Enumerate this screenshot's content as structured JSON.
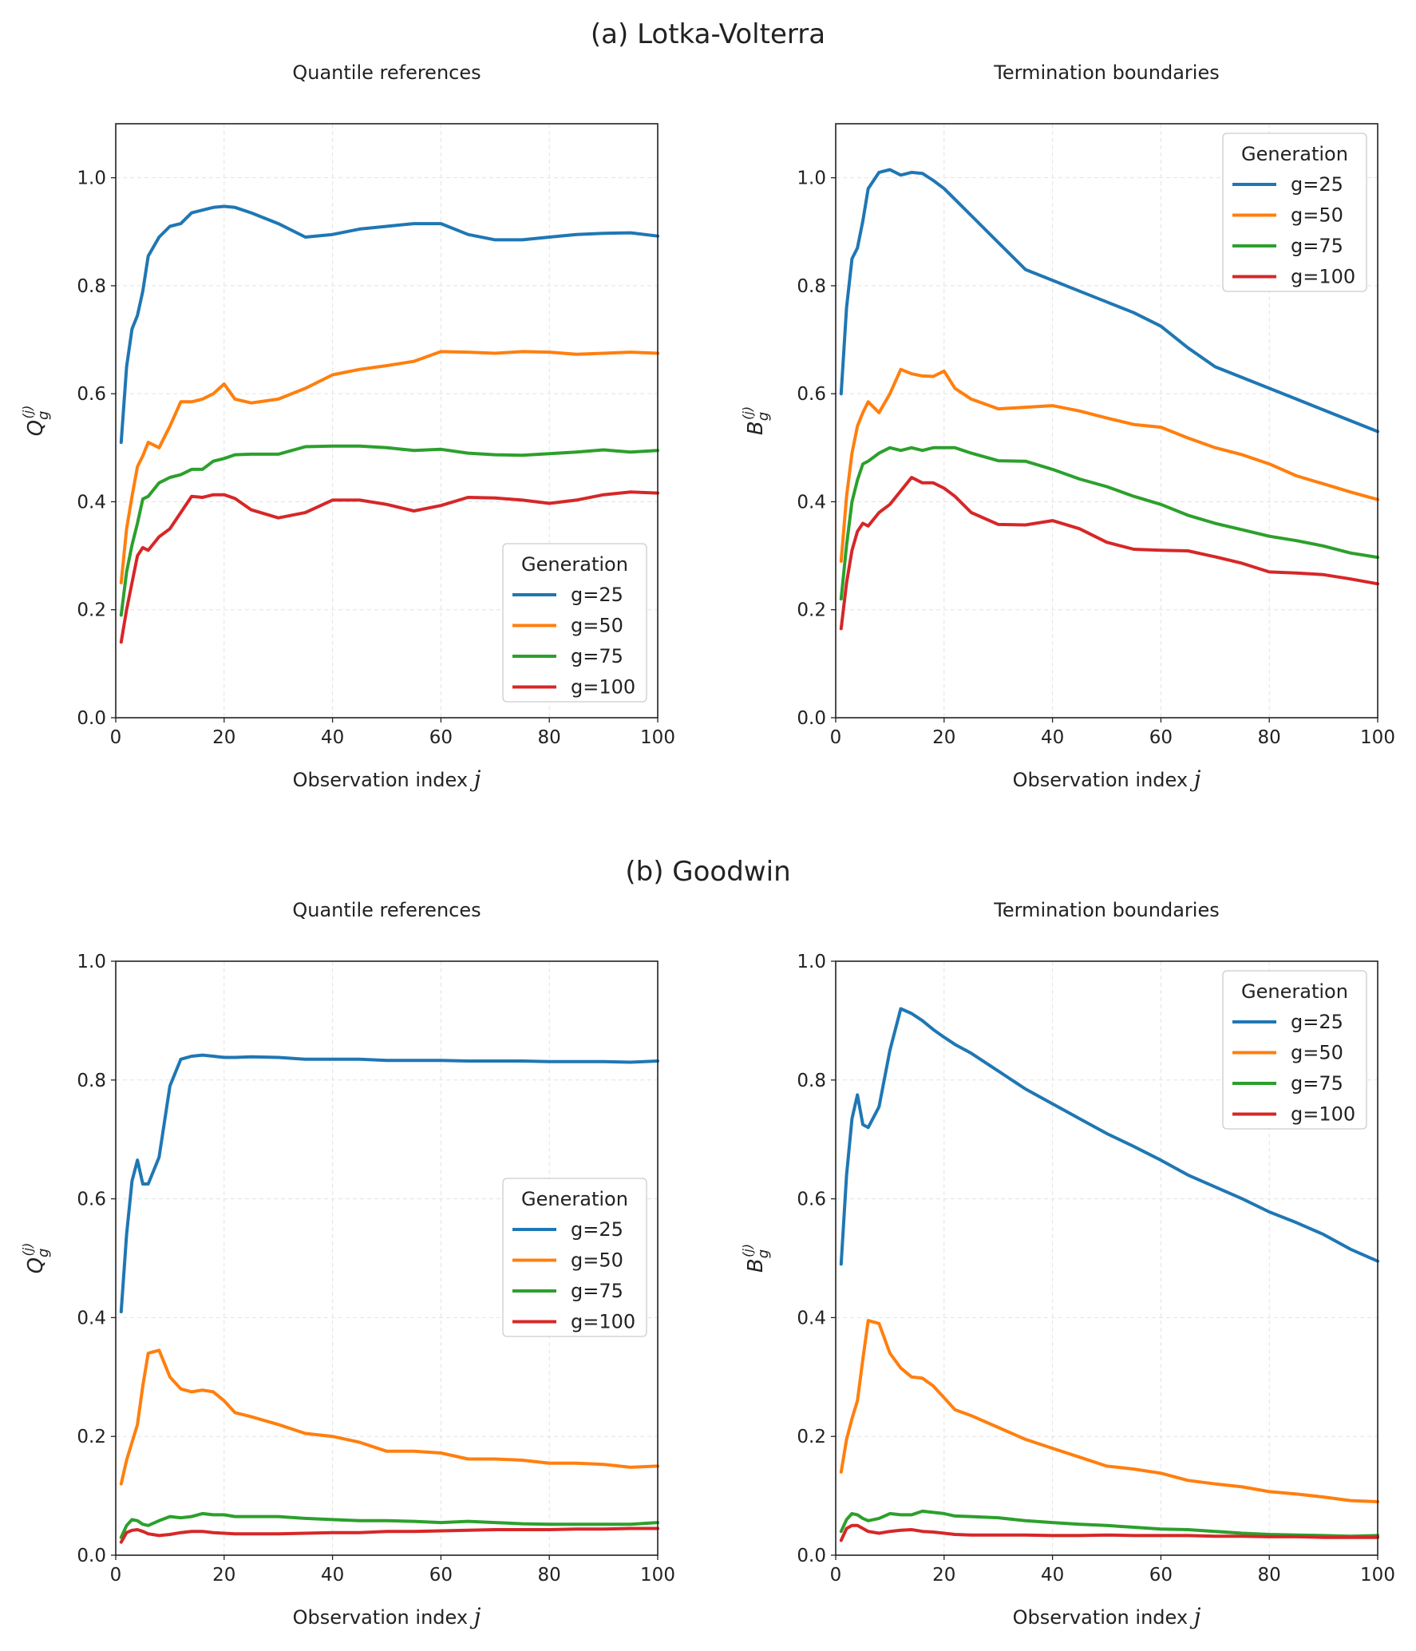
{
  "figure": {
    "row_titles": [
      "(a) Lotka-Volterra",
      "(b) Goodwin"
    ]
  },
  "colors": {
    "g=25": "#1f77b4",
    "g=50": "#ff7f0e",
    "g=75": "#2ca02c",
    "g=100": "#d62728"
  },
  "chart_data": [
    {
      "type": "line",
      "row": 0,
      "col": 0,
      "title": "Quantile references",
      "xlabel": "Observation index",
      "xlabel_var": "j",
      "ylabel": {
        "base": "Q",
        "sub": "g",
        "sup": "(j)"
      },
      "xlim": [
        0,
        100
      ],
      "ylim": [
        0,
        1.1
      ],
      "xticks": [
        0,
        20,
        40,
        60,
        80,
        100
      ],
      "xtick_labels": [
        "0",
        "20",
        "40",
        "60",
        "80",
        "100"
      ],
      "yticks": [
        0,
        0.2,
        0.4,
        0.6,
        0.8,
        1.0
      ],
      "ytick_labels": [
        "0.0",
        "0.2",
        "0.4",
        "0.6",
        "0.8",
        "1.0"
      ],
      "grid": true,
      "legend_title": "Generation",
      "legend_placement": "lower-right",
      "x": [
        1,
        2,
        3,
        4,
        5,
        6,
        8,
        10,
        12,
        14,
        16,
        18,
        20,
        22,
        25,
        30,
        35,
        40,
        45,
        50,
        55,
        60,
        65,
        70,
        75,
        80,
        85,
        90,
        95,
        100
      ],
      "series": [
        {
          "name": "g=25",
          "values": [
            0.51,
            0.65,
            0.72,
            0.745,
            0.79,
            0.855,
            0.89,
            0.91,
            0.915,
            0.935,
            0.94,
            0.945,
            0.947,
            0.945,
            0.935,
            0.915,
            0.89,
            0.895,
            0.905,
            0.91,
            0.915,
            0.915,
            0.895,
            0.885,
            0.885,
            0.89,
            0.895,
            0.897,
            0.898,
            0.892
          ]
        },
        {
          "name": "g=50",
          "values": [
            0.25,
            0.35,
            0.41,
            0.465,
            0.485,
            0.51,
            0.5,
            0.54,
            0.585,
            0.585,
            0.59,
            0.6,
            0.618,
            0.59,
            0.583,
            0.59,
            0.61,
            0.635,
            0.645,
            0.652,
            0.66,
            0.678,
            0.677,
            0.675,
            0.678,
            0.677,
            0.673,
            0.675,
            0.677,
            0.675
          ]
        },
        {
          "name": "g=75",
          "values": [
            0.19,
            0.27,
            0.32,
            0.36,
            0.405,
            0.41,
            0.435,
            0.445,
            0.45,
            0.46,
            0.46,
            0.475,
            0.48,
            0.487,
            0.488,
            0.488,
            0.502,
            0.503,
            0.503,
            0.5,
            0.495,
            0.497,
            0.49,
            0.487,
            0.486,
            0.489,
            0.492,
            0.496,
            0.492,
            0.495
          ]
        },
        {
          "name": "g=100",
          "values": [
            0.14,
            0.2,
            0.25,
            0.3,
            0.315,
            0.31,
            0.335,
            0.35,
            0.38,
            0.41,
            0.408,
            0.413,
            0.413,
            0.406,
            0.385,
            0.37,
            0.38,
            0.403,
            0.403,
            0.395,
            0.383,
            0.393,
            0.408,
            0.407,
            0.403,
            0.397,
            0.403,
            0.413,
            0.418,
            0.416
          ]
        }
      ]
    },
    {
      "type": "line",
      "row": 0,
      "col": 1,
      "title": "Termination boundaries",
      "xlabel": "Observation index",
      "xlabel_var": "j",
      "ylabel": {
        "base": "B",
        "sub": "g",
        "sup": "(j)"
      },
      "xlim": [
        0,
        100
      ],
      "ylim": [
        0,
        1.1
      ],
      "xticks": [
        0,
        20,
        40,
        60,
        80,
        100
      ],
      "xtick_labels": [
        "0",
        "20",
        "40",
        "60",
        "80",
        "100"
      ],
      "yticks": [
        0,
        0.2,
        0.4,
        0.6,
        0.8,
        1.0
      ],
      "ytick_labels": [
        "0.0",
        "0.2",
        "0.4",
        "0.6",
        "0.8",
        "1.0"
      ],
      "grid": true,
      "legend_title": "Generation",
      "legend_placement": "upper-right",
      "x": [
        1,
        2,
        3,
        4,
        5,
        6,
        8,
        10,
        12,
        14,
        16,
        18,
        20,
        22,
        25,
        30,
        35,
        40,
        45,
        50,
        55,
        60,
        65,
        70,
        75,
        80,
        85,
        90,
        95,
        100
      ],
      "series": [
        {
          "name": "g=25",
          "values": [
            0.6,
            0.76,
            0.85,
            0.87,
            0.92,
            0.98,
            1.01,
            1.015,
            1.005,
            1.01,
            1.008,
            0.995,
            0.98,
            0.96,
            0.93,
            0.88,
            0.83,
            0.81,
            0.79,
            0.77,
            0.75,
            0.725,
            0.685,
            0.65,
            0.63,
            0.61,
            0.59,
            0.57,
            0.55,
            0.53
          ]
        },
        {
          "name": "g=50",
          "values": [
            0.29,
            0.41,
            0.49,
            0.54,
            0.565,
            0.585,
            0.565,
            0.6,
            0.645,
            0.637,
            0.633,
            0.632,
            0.642,
            0.61,
            0.59,
            0.572,
            0.575,
            0.578,
            0.568,
            0.555,
            0.543,
            0.538,
            0.518,
            0.5,
            0.487,
            0.47,
            0.448,
            0.433,
            0.418,
            0.404
          ]
        },
        {
          "name": "g=75",
          "values": [
            0.22,
            0.32,
            0.4,
            0.44,
            0.47,
            0.475,
            0.49,
            0.5,
            0.495,
            0.5,
            0.495,
            0.5,
            0.5,
            0.5,
            0.49,
            0.476,
            0.475,
            0.46,
            0.442,
            0.428,
            0.41,
            0.395,
            0.375,
            0.36,
            0.348,
            0.336,
            0.328,
            0.318,
            0.305,
            0.297
          ]
        },
        {
          "name": "g=100",
          "values": [
            0.165,
            0.25,
            0.31,
            0.345,
            0.36,
            0.355,
            0.38,
            0.395,
            0.42,
            0.445,
            0.435,
            0.435,
            0.425,
            0.41,
            0.38,
            0.358,
            0.357,
            0.365,
            0.35,
            0.325,
            0.312,
            0.31,
            0.309,
            0.298,
            0.286,
            0.27,
            0.268,
            0.265,
            0.257,
            0.248
          ]
        }
      ]
    },
    {
      "type": "line",
      "row": 1,
      "col": 0,
      "title": "Quantile references",
      "xlabel": "Observation index",
      "xlabel_var": "j",
      "ylabel": {
        "base": "Q",
        "sub": "g",
        "sup": "(j)"
      },
      "xlim": [
        0,
        100
      ],
      "ylim": [
        0,
        1.0
      ],
      "xticks": [
        0,
        20,
        40,
        60,
        80,
        100
      ],
      "xtick_labels": [
        "0",
        "20",
        "40",
        "60",
        "80",
        "100"
      ],
      "yticks": [
        0,
        0.2,
        0.4,
        0.6,
        0.8,
        1.0
      ],
      "ytick_labels": [
        "0.0",
        "0.2",
        "0.4",
        "0.6",
        "0.8",
        "1.0"
      ],
      "grid": true,
      "legend_title": "Generation",
      "legend_placement": "center-right",
      "x": [
        1,
        2,
        3,
        4,
        5,
        6,
        8,
        10,
        12,
        14,
        16,
        18,
        20,
        22,
        25,
        30,
        35,
        40,
        45,
        50,
        55,
        60,
        65,
        70,
        75,
        80,
        85,
        90,
        95,
        100
      ],
      "series": [
        {
          "name": "g=25",
          "values": [
            0.41,
            0.54,
            0.63,
            0.665,
            0.625,
            0.625,
            0.67,
            0.79,
            0.835,
            0.84,
            0.842,
            0.84,
            0.838,
            0.838,
            0.839,
            0.838,
            0.835,
            0.835,
            0.835,
            0.833,
            0.833,
            0.833,
            0.832,
            0.832,
            0.832,
            0.831,
            0.831,
            0.831,
            0.83,
            0.832
          ]
        },
        {
          "name": "g=50",
          "values": [
            0.12,
            0.16,
            0.19,
            0.22,
            0.285,
            0.34,
            0.345,
            0.3,
            0.28,
            0.275,
            0.278,
            0.275,
            0.26,
            0.24,
            0.233,
            0.22,
            0.205,
            0.2,
            0.19,
            0.175,
            0.175,
            0.172,
            0.162,
            0.162,
            0.16,
            0.155,
            0.155,
            0.153,
            0.148,
            0.15
          ]
        },
        {
          "name": "g=75",
          "values": [
            0.03,
            0.05,
            0.06,
            0.058,
            0.052,
            0.05,
            0.058,
            0.065,
            0.063,
            0.065,
            0.07,
            0.068,
            0.068,
            0.065,
            0.065,
            0.065,
            0.062,
            0.06,
            0.058,
            0.058,
            0.057,
            0.055,
            0.057,
            0.055,
            0.053,
            0.052,
            0.052,
            0.052,
            0.052,
            0.055
          ]
        },
        {
          "name": "g=100",
          "values": [
            0.022,
            0.038,
            0.042,
            0.043,
            0.04,
            0.036,
            0.033,
            0.035,
            0.038,
            0.04,
            0.04,
            0.038,
            0.037,
            0.036,
            0.036,
            0.036,
            0.037,
            0.038,
            0.038,
            0.04,
            0.04,
            0.041,
            0.042,
            0.043,
            0.043,
            0.043,
            0.044,
            0.044,
            0.045,
            0.045
          ]
        }
      ]
    },
    {
      "type": "line",
      "row": 1,
      "col": 1,
      "title": "Termination boundaries",
      "xlabel": "Observation index",
      "xlabel_var": "j",
      "ylabel": {
        "base": "B",
        "sub": "g",
        "sup": "(j)"
      },
      "xlim": [
        0,
        100
      ],
      "ylim": [
        0,
        1.0
      ],
      "xticks": [
        0,
        20,
        40,
        60,
        80,
        100
      ],
      "xtick_labels": [
        "0",
        "20",
        "40",
        "60",
        "80",
        "100"
      ],
      "yticks": [
        0,
        0.2,
        0.4,
        0.6,
        0.8,
        1.0
      ],
      "ytick_labels": [
        "0.0",
        "0.2",
        "0.4",
        "0.6",
        "0.8",
        "1.0"
      ],
      "grid": true,
      "legend_title": "Generation",
      "legend_placement": "upper-right",
      "x": [
        1,
        2,
        3,
        4,
        5,
        6,
        8,
        10,
        12,
        14,
        16,
        18,
        20,
        22,
        25,
        30,
        35,
        40,
        45,
        50,
        55,
        60,
        65,
        70,
        75,
        80,
        85,
        90,
        95,
        100
      ],
      "series": [
        {
          "name": "g=25",
          "values": [
            0.49,
            0.64,
            0.735,
            0.775,
            0.725,
            0.72,
            0.755,
            0.85,
            0.92,
            0.912,
            0.9,
            0.885,
            0.872,
            0.86,
            0.845,
            0.815,
            0.785,
            0.76,
            0.735,
            0.71,
            0.688,
            0.665,
            0.64,
            0.62,
            0.6,
            0.578,
            0.56,
            0.54,
            0.515,
            0.495
          ]
        },
        {
          "name": "g=50",
          "values": [
            0.14,
            0.195,
            0.23,
            0.26,
            0.33,
            0.395,
            0.39,
            0.34,
            0.315,
            0.3,
            0.298,
            0.285,
            0.265,
            0.245,
            0.235,
            0.215,
            0.195,
            0.18,
            0.165,
            0.15,
            0.145,
            0.138,
            0.126,
            0.12,
            0.115,
            0.107,
            0.103,
            0.098,
            0.092,
            0.09
          ]
        },
        {
          "name": "g=75",
          "values": [
            0.04,
            0.06,
            0.07,
            0.068,
            0.062,
            0.058,
            0.062,
            0.07,
            0.068,
            0.068,
            0.074,
            0.072,
            0.07,
            0.066,
            0.065,
            0.063,
            0.058,
            0.055,
            0.052,
            0.05,
            0.047,
            0.044,
            0.043,
            0.04,
            0.037,
            0.035,
            0.034,
            0.033,
            0.032,
            0.033
          ]
        },
        {
          "name": "g=100",
          "values": [
            0.025,
            0.045,
            0.05,
            0.05,
            0.045,
            0.04,
            0.037,
            0.04,
            0.042,
            0.043,
            0.04,
            0.039,
            0.037,
            0.035,
            0.034,
            0.034,
            0.034,
            0.033,
            0.033,
            0.034,
            0.033,
            0.033,
            0.033,
            0.032,
            0.032,
            0.031,
            0.031,
            0.03,
            0.03,
            0.03
          ]
        }
      ]
    }
  ]
}
